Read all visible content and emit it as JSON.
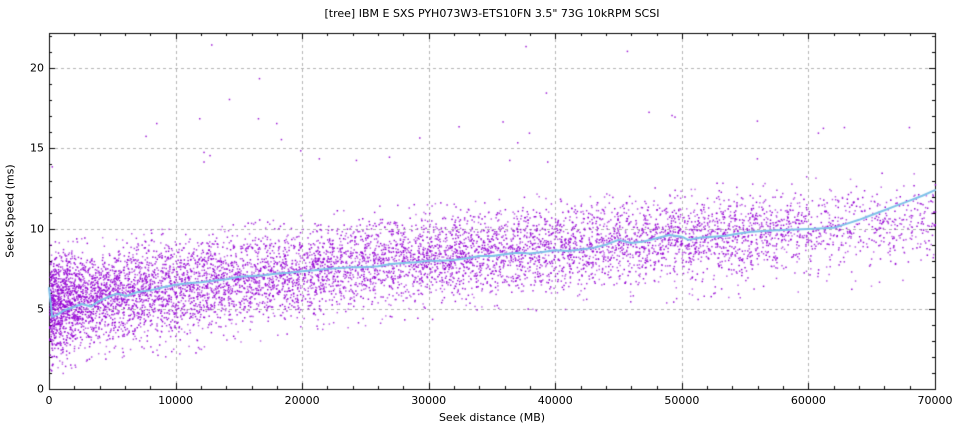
{
  "chart_data": {
    "type": "scatter",
    "title": "[tree] IBM E SXS PYH073W3-ETS10FN 3.5\" 73G 10kRPM SCSI",
    "xlabel": "Seek distance (MB)",
    "ylabel": "Seek Speed (ms)",
    "xlim": [
      0,
      70000
    ],
    "ylim": [
      0,
      22.2
    ],
    "x_tick_values": [
      0,
      10000,
      20000,
      30000,
      40000,
      50000,
      60000,
      70000
    ],
    "x_tick_labels": [
      "0",
      "10000",
      "20000",
      "30000",
      "40000",
      "50000",
      "60000",
      "70000"
    ],
    "y_tick_values": [
      0,
      5,
      10,
      15,
      20
    ],
    "y_tick_labels": [
      "0",
      "5",
      "10",
      "15",
      "20"
    ],
    "x_minor_step": 2000,
    "y_minor_step": 1,
    "grid": {
      "show": true,
      "style": "dashed",
      "color": "#b4b4b4"
    },
    "colors": {
      "points": "#9400d3",
      "mean_line": "#7fc2e8",
      "axis": "#000000"
    },
    "legend": "none",
    "scatter_band": {
      "name": "seek-time samples",
      "description": "dense random scatter of per-seek measurements between lower and upper envelopes; density decreases with distance and drops after 60000 MB",
      "point_count": 8200,
      "seed": 42,
      "knots_x": [
        0,
        1000,
        2500,
        5000,
        7500,
        10000,
        12500,
        15000,
        17500,
        20000,
        25000,
        30000,
        35000,
        40000,
        45000,
        50000,
        55000,
        60000,
        65000,
        70000
      ],
      "lower_ms": [
        1.6,
        1.9,
        2.2,
        2.6,
        2.8,
        3.0,
        3.3,
        3.7,
        4.0,
        4.3,
        4.8,
        5.25,
        5.6,
        5.85,
        6.1,
        6.35,
        6.6,
        6.9,
        7.2,
        7.5
      ],
      "upper_ms": [
        8.8,
        8.9,
        9.0,
        9.2,
        9.45,
        9.7,
        9.9,
        10.1,
        10.3,
        10.55,
        10.95,
        11.25,
        11.55,
        11.85,
        12.1,
        12.35,
        12.6,
        12.85,
        13.1,
        13.35
      ],
      "density_weight": [
        14,
        9,
        6.5,
        5,
        4.3,
        3.9,
        3.6,
        3.4,
        3.2,
        3.1,
        2.9,
        2.8,
        2.7,
        2.6,
        2.5,
        2.4,
        2.3,
        1.3,
        1.05,
        0.95
      ],
      "below_band_fraction": 0.015,
      "above_band_fraction": 0.01
    },
    "mean_line": {
      "name": "running average seek speed",
      "points": [
        [
          0,
          6.3
        ],
        [
          250,
          4.5
        ],
        [
          700,
          4.65
        ],
        [
          1200,
          4.9
        ],
        [
          1900,
          5.1
        ],
        [
          2600,
          5.3
        ],
        [
          3300,
          5.15
        ],
        [
          4000,
          5.5
        ],
        [
          4700,
          5.75
        ],
        [
          5400,
          5.95
        ],
        [
          6100,
          5.8
        ],
        [
          7000,
          6.05
        ],
        [
          8000,
          6.15
        ],
        [
          9000,
          6.35
        ],
        [
          10000,
          6.5
        ],
        [
          11000,
          6.6
        ],
        [
          12000,
          6.65
        ],
        [
          13000,
          6.75
        ],
        [
          14000,
          6.85
        ],
        [
          15000,
          7.0
        ],
        [
          16000,
          7.05
        ],
        [
          17000,
          7.1
        ],
        [
          18000,
          7.2
        ],
        [
          19000,
          7.25
        ],
        [
          20000,
          7.35
        ],
        [
          21000,
          7.4
        ],
        [
          22000,
          7.5
        ],
        [
          23000,
          7.55
        ],
        [
          24000,
          7.6
        ],
        [
          25000,
          7.6
        ],
        [
          26000,
          7.65
        ],
        [
          27000,
          7.8
        ],
        [
          28000,
          7.85
        ],
        [
          29000,
          7.9
        ],
        [
          30000,
          8.0
        ],
        [
          31000,
          8.0
        ],
        [
          32000,
          8.05
        ],
        [
          33000,
          8.15
        ],
        [
          34000,
          8.3
        ],
        [
          35000,
          8.3
        ],
        [
          36000,
          8.4
        ],
        [
          37000,
          8.5
        ],
        [
          38000,
          8.45
        ],
        [
          39000,
          8.55
        ],
        [
          40000,
          8.65
        ],
        [
          41000,
          8.6
        ],
        [
          42000,
          8.7
        ],
        [
          43000,
          8.8
        ],
        [
          44000,
          9.0
        ],
        [
          45000,
          9.3
        ],
        [
          46000,
          9.1
        ],
        [
          47000,
          9.2
        ],
        [
          48000,
          9.4
        ],
        [
          49000,
          9.6
        ],
        [
          50000,
          9.5
        ],
        [
          50500,
          9.3
        ],
        [
          51500,
          9.45
        ],
        [
          52500,
          9.5
        ],
        [
          53500,
          9.55
        ],
        [
          54500,
          9.7
        ],
        [
          55500,
          9.8
        ],
        [
          56500,
          9.85
        ],
        [
          57500,
          9.9
        ],
        [
          59000,
          9.95
        ],
        [
          60500,
          10.0
        ],
        [
          62000,
          10.05
        ],
        [
          63000,
          10.3
        ],
        [
          64000,
          10.55
        ],
        [
          65000,
          10.85
        ],
        [
          66000,
          11.15
        ],
        [
          67000,
          11.45
        ],
        [
          68000,
          11.75
        ],
        [
          69000,
          12.05
        ],
        [
          70000,
          12.4
        ]
      ]
    },
    "outliers": [
      [
        200,
        13.9
      ],
      [
        7610,
        15.8
      ],
      [
        8455,
        16.6
      ],
      [
        11850,
        16.9
      ],
      [
        12190,
        14.8
      ],
      [
        12665,
        14.6
      ],
      [
        12190,
        14.2
      ],
      [
        12800,
        21.5
      ],
      [
        14200,
        18.1
      ],
      [
        16490,
        16.9
      ],
      [
        16570,
        19.4
      ],
      [
        17935,
        16.6
      ],
      [
        18305,
        15.6
      ],
      [
        19830,
        14.9
      ],
      [
        21300,
        14.4
      ],
      [
        24230,
        14.3
      ],
      [
        26840,
        14.5
      ],
      [
        29235,
        15.7
      ],
      [
        32340,
        16.4
      ],
      [
        35815,
        16.7
      ],
      [
        36345,
        14.3
      ],
      [
        36975,
        15.4
      ],
      [
        37630,
        21.4
      ],
      [
        37900,
        16.0
      ],
      [
        39240,
        18.5
      ],
      [
        39345,
        14.2
      ],
      [
        45640,
        21.1
      ],
      [
        47350,
        17.3
      ],
      [
        49165,
        17.1
      ],
      [
        49400,
        17.0
      ],
      [
        55910,
        16.75
      ],
      [
        55910,
        14.4
      ],
      [
        60730,
        16.0
      ],
      [
        61125,
        16.3
      ],
      [
        62785,
        16.35
      ],
      [
        67920,
        16.35
      ]
    ]
  }
}
